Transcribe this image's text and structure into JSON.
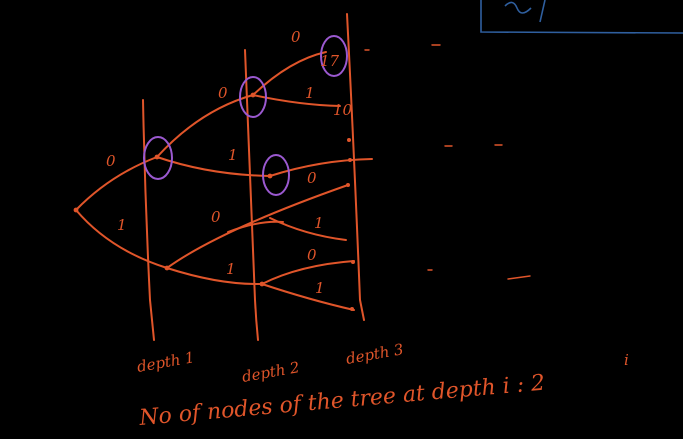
{
  "diagram": {
    "edge_labels": {
      "root_upper": "0",
      "root_lower": "1",
      "d1u_upper": "0",
      "d1u_lower": "1",
      "d1l_upper": "0",
      "d1l_lower": "1",
      "d2a_upper": "0",
      "d2a_lower": "1",
      "d2b_upper": "0",
      "d2c_upper": "1",
      "d2c_mid": "0",
      "d2d_lower": "1"
    },
    "depth_labels": [
      "depth 1",
      "depth 2",
      "depth 3"
    ],
    "leaf_labels": {
      "leaf_a": "17",
      "leaf_b": "10"
    },
    "caption": "No of nodes of the tree at depth i : 2",
    "caption_exponent": "i"
  },
  "colors": {
    "background": "#000000",
    "ink": "#e0552a",
    "highlight": "#9b59d0",
    "box": "#2f5f9f"
  }
}
